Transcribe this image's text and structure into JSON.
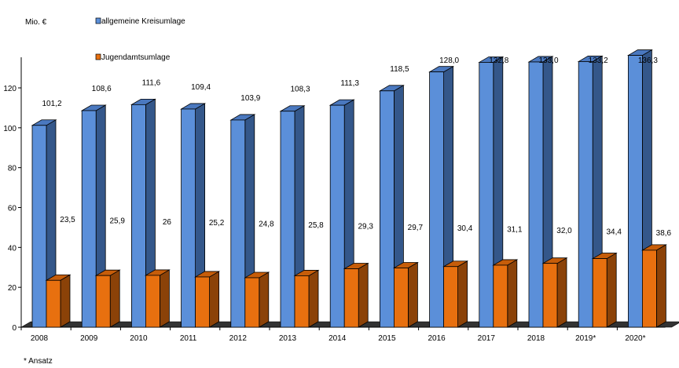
{
  "chart_data": {
    "type": "bar",
    "ylabel": "Mio. €",
    "ylim": [
      0,
      135
    ],
    "yticks": [
      0,
      20,
      40,
      60,
      80,
      100,
      120
    ],
    "categories": [
      "2008",
      "2009",
      "2010",
      "2011",
      "2012",
      "2013",
      "2014",
      "2015",
      "2016",
      "2017",
      "2018",
      "2019*",
      "2020*"
    ],
    "series": [
      {
        "name": "allgemeine Kreisumlage",
        "color": "#5b8fd9",
        "values": [
          101.2,
          108.6,
          111.6,
          109.4,
          103.9,
          108.3,
          111.3,
          118.5,
          128.0,
          132.8,
          133.0,
          133.2,
          136.3
        ],
        "labels": [
          "101,2",
          "108,6",
          "111,6",
          "109,4",
          "103,9",
          "108,3",
          "111,3",
          "118,5",
          "128,0",
          "132,8",
          "133,0",
          "133,2",
          "136,3"
        ]
      },
      {
        "name": "Jugendamtsumlage",
        "color": "#e8700f",
        "values": [
          23.5,
          25.9,
          26,
          25.2,
          24.8,
          25.8,
          29.3,
          29.7,
          30.4,
          31.1,
          32.0,
          34.4,
          38.6
        ],
        "labels": [
          "23,5",
          "25,9",
          "26",
          "25,2",
          "24,8",
          "25,8",
          "29,3",
          "29,7",
          "30,4",
          "31,1",
          "32,0",
          "34,4",
          "38,6"
        ]
      }
    ],
    "footnote": "* Ansatz",
    "legend_position": "top-center",
    "grid": false
  }
}
